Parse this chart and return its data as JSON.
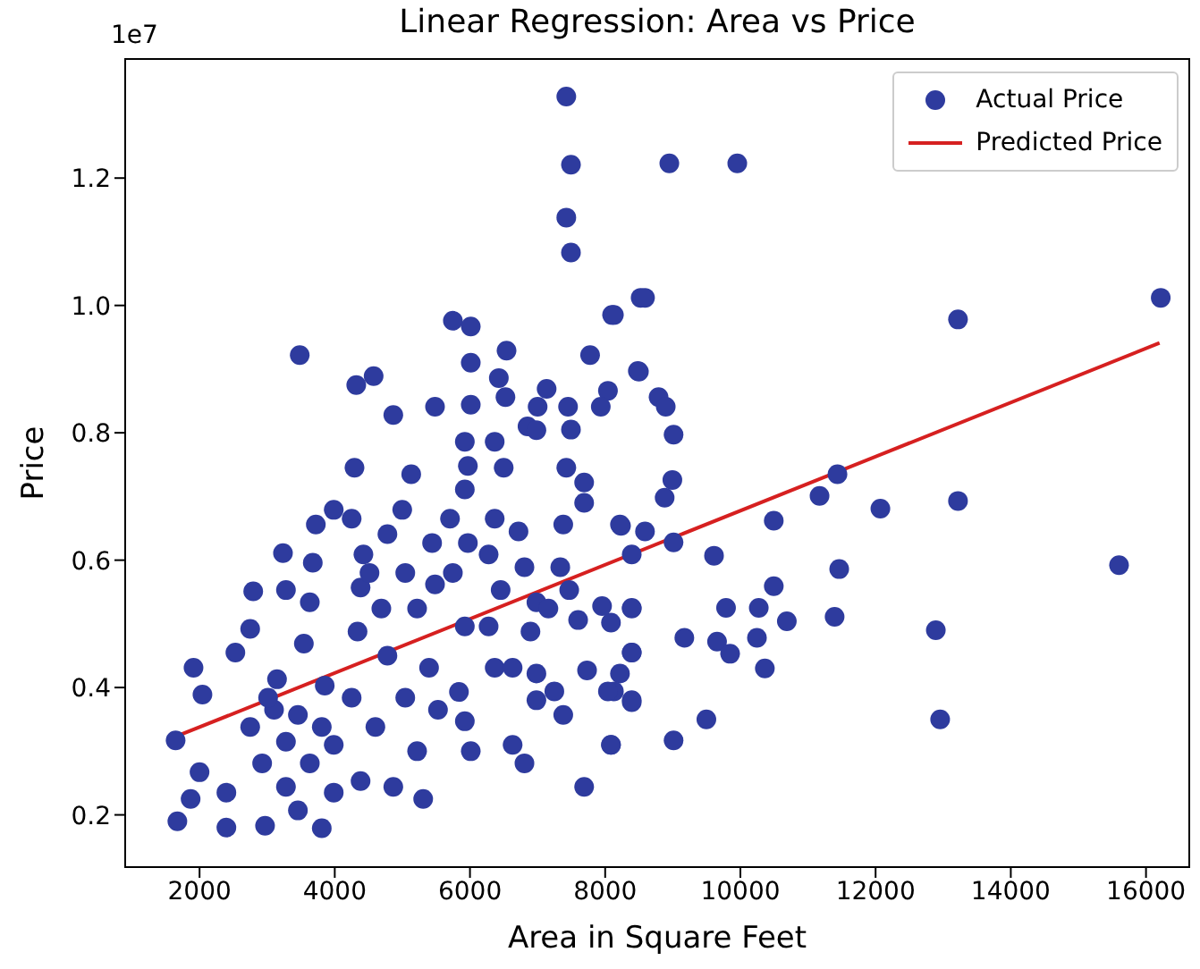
{
  "chart_data": {
    "type": "scatter",
    "title": "Linear Regression: Area vs Price",
    "xlabel": "Area in Square Feet",
    "ylabel": "Price",
    "annotations": [
      "1e7"
    ],
    "xlim": [
      900,
      16640
    ],
    "ylim": [
      0.118,
      1.387
    ],
    "xticks": [
      2000,
      4000,
      6000,
      8000,
      10000,
      12000,
      14000,
      16000
    ],
    "yticks": [
      0.2,
      0.4,
      0.6,
      0.8,
      {
        "value": 1,
        "label": "1.0"
      },
      1.2
    ],
    "grid": false,
    "legend": "top right",
    "marker": "circle",
    "series": [
      {
        "name": "Actual Price",
        "color": "#2e3b9e",
        "x": [
          7425,
          7494,
          7425,
          7494,
          8525,
          8102,
          5747,
          6012,
          3482,
          7777,
          6541,
          6012,
          4575,
          4318,
          8483,
          6427,
          7134,
          8041,
          4866,
          5483,
          6012,
          6525,
          7001,
          7451,
          7935,
          6851,
          7494,
          8949,
          9954,
          8589,
          8129,
          16218,
          13219,
          8499,
          8790,
          8896,
          9012,
          8994,
          8880,
          8234,
          8589,
          9012,
          8393,
          10494,
          11171,
          11436,
          12071,
          13219,
          9610,
          11462,
          15601,
          10494,
          9788,
          10272,
          10687,
          11394,
          12891,
          9171,
          9655,
          9848,
          10245,
          10362,
          9497,
          12955,
          9012,
          8086,
          8393,
          8393,
          8219,
          8393,
          8129,
          8086,
          1672,
          1646,
          1868,
          2000,
          1911,
          2043,
          2397,
          2397,
          2530,
          2794,
          2749,
          2969,
          2926,
          2749,
          3234,
          3278,
          3146,
          3278,
          3455,
          3675,
          3631,
          3543,
          3455,
          3808,
          3720,
          3985,
          4250,
          3852,
          3985,
          3985,
          4292,
          4424,
          4382,
          4337,
          4250,
          4382,
          4779,
          4514,
          4689,
          4779,
          4601,
          4866,
          5131,
          4998,
          5043,
          5218,
          5308,
          5043,
          5440,
          5483,
          5395,
          5527,
          5218,
          5924,
          5924,
          5969,
          5705,
          5747,
          5924,
          5837,
          6012,
          5924,
          6366,
          6499,
          6366,
          6276,
          6454,
          6276,
          6366,
          6631,
          6806,
          6631,
          6718,
          6983,
          6806,
          6983,
          6895,
          6983,
          6983,
          7248,
          7425,
          7689,
          7689,
          7380,
          7336,
          7468,
          7600,
          7160,
          7380,
          7689,
          8086,
          7954,
          8219,
          8393,
          8393,
          8393,
          7732,
          8041,
          5969,
          3278,
          3631,
          3102,
          3808,
          3014
        ],
        "values": [
          1.328,
          1.221,
          1.138,
          1.083,
          1.012,
          0.985,
          0.976,
          0.967,
          0.922,
          0.922,
          0.929,
          0.91,
          0.889,
          0.875,
          0.897,
          0.886,
          0.869,
          0.866,
          0.828,
          0.841,
          0.844,
          0.856,
          0.841,
          0.841,
          0.841,
          0.81,
          0.805,
          1.223,
          1.223,
          1.012,
          0.985,
          1.012,
          0.978,
          0.896,
          0.856,
          0.841,
          0.797,
          0.726,
          0.698,
          0.654,
          0.645,
          0.628,
          0.609,
          0.662,
          0.701,
          0.735,
          0.681,
          0.693,
          0.607,
          0.586,
          0.592,
          0.559,
          0.525,
          0.525,
          0.504,
          0.511,
          0.49,
          0.478,
          0.472,
          0.453,
          0.478,
          0.43,
          0.35,
          0.35,
          0.317,
          0.31,
          0.525,
          0.455,
          0.422,
          0.377,
          0.394,
          0.502,
          0.19,
          0.317,
          0.225,
          0.267,
          0.431,
          0.389,
          0.18,
          0.235,
          0.455,
          0.551,
          0.492,
          0.183,
          0.281,
          0.338,
          0.611,
          0.553,
          0.413,
          0.244,
          0.207,
          0.596,
          0.534,
          0.469,
          0.357,
          0.179,
          0.656,
          0.679,
          0.665,
          0.403,
          0.31,
          0.235,
          0.745,
          0.609,
          0.557,
          0.488,
          0.384,
          0.253,
          0.641,
          0.58,
          0.524,
          0.45,
          0.338,
          0.244,
          0.735,
          0.679,
          0.58,
          0.524,
          0.225,
          0.384,
          0.627,
          0.562,
          0.431,
          0.365,
          0.3,
          0.786,
          0.711,
          0.627,
          0.665,
          0.58,
          0.496,
          0.393,
          0.3,
          0.347,
          0.786,
          0.745,
          0.665,
          0.609,
          0.553,
          0.496,
          0.431,
          0.31,
          0.281,
          0.431,
          0.645,
          0.804,
          0.589,
          0.534,
          0.488,
          0.422,
          0.38,
          0.394,
          0.745,
          0.722,
          0.69,
          0.656,
          0.589,
          0.553,
          0.506,
          0.524,
          0.357,
          0.244,
          0.31,
          0.528,
          0.656,
          0.524,
          0.455,
          0.38,
          0.427,
          0.394,
          0.748,
          0.315,
          0.281,
          0.365,
          0.338,
          0.384
        ]
      },
      {
        "name": "Predicted Price",
        "type": "line",
        "color": "#d62020",
        "marker": "none",
        "x": [
          1650,
          16200
        ],
        "values": [
          0.323,
          0.941
        ]
      }
    ]
  }
}
